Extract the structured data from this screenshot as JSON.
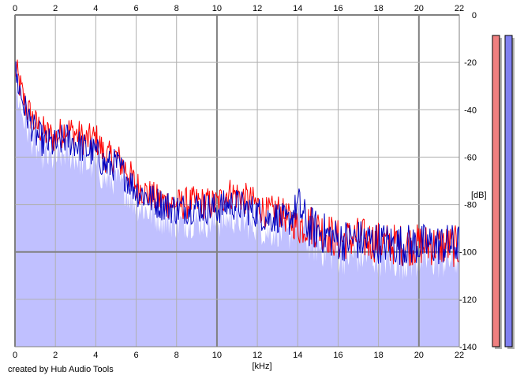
{
  "chart_data": {
    "type": "area",
    "xlabel": "[kHz]",
    "ylabel": "[dB]",
    "xlim": [
      0,
      22
    ],
    "ylim": [
      -140,
      0
    ],
    "x_ticks": [
      0,
      2,
      4,
      6,
      8,
      10,
      12,
      14,
      16,
      18,
      20,
      22
    ],
    "x_tick_labels": [
      "0",
      "2",
      "4",
      "6",
      "8",
      "10",
      "12",
      "14",
      "16",
      "18",
      "20",
      "22"
    ],
    "y_ticks": [
      0,
      -20,
      -40,
      -60,
      -80,
      -100,
      -120,
      -140
    ],
    "y_tick_labels": [
      "0",
      "-20",
      "-40",
      "-60",
      "-80",
      "-100",
      "-120",
      "-140"
    ],
    "grid": true,
    "fill_color": "#c0c0ff",
    "series": [
      {
        "color": "#ff0000",
        "x": [
          0,
          0.25,
          0.5,
          1,
          1.5,
          2,
          2.5,
          3,
          3.5,
          4,
          4.5,
          5,
          5.5,
          6,
          7,
          8,
          9,
          10,
          10.5,
          11,
          11.5,
          12,
          12.5,
          13,
          13.5,
          14,
          14.5,
          15,
          15.5,
          16,
          17,
          18,
          19,
          20,
          21,
          22
        ],
        "y": [
          -22,
          -30,
          -38,
          -46,
          -50,
          -52,
          -48,
          -50,
          -53,
          -52,
          -60,
          -60,
          -65,
          -72,
          -78,
          -80,
          -79,
          -80,
          -75,
          -76,
          -78,
          -80,
          -84,
          -82,
          -86,
          -89,
          -88,
          -90,
          -92,
          -95,
          -94,
          -96,
          -97,
          -97,
          -97,
          -98
        ]
      },
      {
        "color": "#0000c0",
        "x": [
          0,
          0.25,
          0.5,
          1,
          1.5,
          2,
          2.5,
          3,
          3.5,
          4,
          4.5,
          5,
          5.5,
          6,
          7,
          8,
          9,
          10,
          10.5,
          11,
          11.5,
          12,
          12.5,
          13,
          13.5,
          14,
          14.5,
          15,
          15.5,
          16,
          17,
          18,
          19,
          20,
          21,
          22
        ],
        "y": [
          -24,
          -32,
          -40,
          -50,
          -54,
          -55,
          -52,
          -54,
          -57,
          -58,
          -64,
          -63,
          -68,
          -74,
          -79,
          -82,
          -81,
          -82,
          -80,
          -80,
          -82,
          -83,
          -86,
          -85,
          -88,
          -80,
          -89,
          -91,
          -93,
          -95,
          -95,
          -96,
          -97,
          -97,
          -97,
          -97
        ]
      }
    ],
    "level_meters": [
      {
        "color": "#f08080",
        "level_db": 0
      },
      {
        "color": "#8080f0",
        "level_db": 0
      }
    ]
  },
  "footer": {
    "credit": "created by Hub Audio Tools"
  }
}
